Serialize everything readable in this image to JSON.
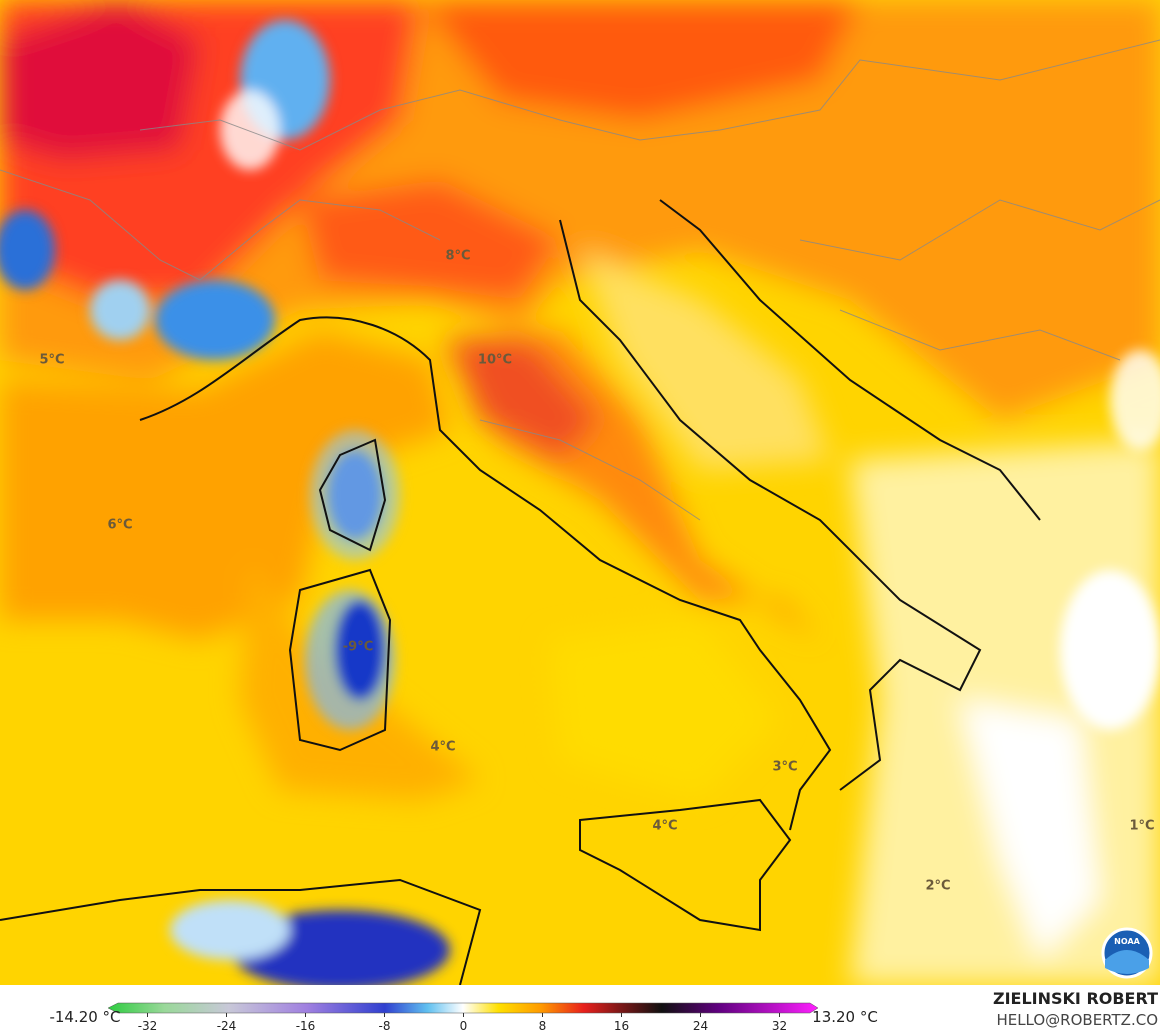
{
  "map": {
    "labels": [
      "8°C",
      "10°C",
      "5°C",
      "6°C",
      "-9°C",
      "4°C",
      "3°C",
      "4°C",
      "1°C",
      "2°C"
    ],
    "logo": "NOAA"
  },
  "colorbar": {
    "min_label": "-14.20 °C",
    "max_label": "13.20 °C",
    "ticks": [
      -32,
      -24,
      -16,
      -8,
      0,
      8,
      16,
      24,
      32
    ],
    "range": [
      -36,
      36
    ]
  },
  "credits": {
    "author": "ZIELINSKI ROBERT",
    "contact": "HELLO@ROBERTZ.CO"
  }
}
